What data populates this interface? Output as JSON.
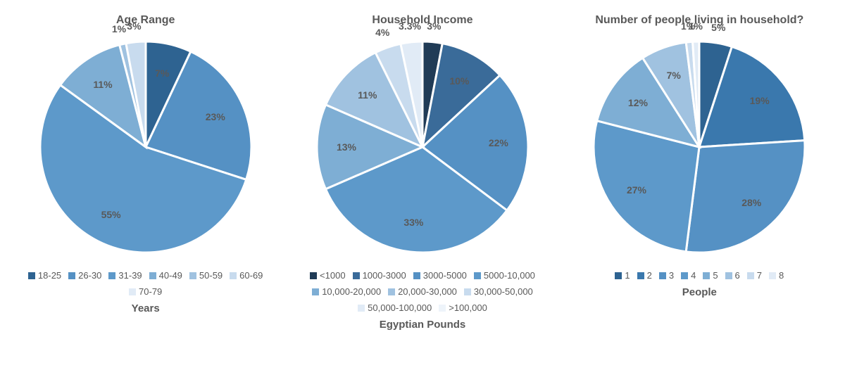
{
  "background_color": "#ffffff",
  "text_color": "#595959",
  "gap_color": "#ffffff",
  "gap_width": 3,
  "charts": [
    {
      "id": "age",
      "title": "Age Range",
      "axis_label": "Years",
      "type": "pie",
      "slices": [
        {
          "label": "18-25",
          "value": 7,
          "display": "7%",
          "color": "#2e6391"
        },
        {
          "label": "26-30",
          "value": 23,
          "display": "23%",
          "color": "#5591c4"
        },
        {
          "label": "31-39",
          "value": 55,
          "display": "55%",
          "color": "#5d99ca"
        },
        {
          "label": "40-49",
          "value": 11,
          "display": "11%",
          "color": "#7eaed4"
        },
        {
          "label": "50-59",
          "value": 1,
          "display": "1%",
          "color": "#a0c2e0"
        },
        {
          "label": "60-69",
          "value": 3,
          "display": "3%",
          "color": "#c8dbee"
        },
        {
          "label": "70-79",
          "value": 0,
          "display": "",
          "color": "#e1ebf6"
        }
      ],
      "label_radius": 0.72,
      "outside_threshold": 5,
      "start_angle": -90
    },
    {
      "id": "income",
      "title": "Household Income",
      "axis_label": "Egyptian Pounds",
      "type": "pie",
      "slices": [
        {
          "label": "<1000",
          "value": 3,
          "display": "3%",
          "color": "#203b56"
        },
        {
          "label": "1000-3000",
          "value": 10,
          "display": "10%",
          "color": "#3a6b99"
        },
        {
          "label": "3000-5000",
          "value": 22,
          "display": "22%",
          "color": "#5591c4"
        },
        {
          "label": "5000-10,000",
          "value": 33,
          "display": "33%",
          "color": "#5d99ca"
        },
        {
          "label": "10,000-20,000",
          "value": 13,
          "display": "13%",
          "color": "#7eaed4"
        },
        {
          "label": "20,000-30,000",
          "value": 11,
          "display": "11%",
          "color": "#a0c2e0"
        },
        {
          "label": "30,000-50,000",
          "value": 4,
          "display": "4%",
          "color": "#c8dbee"
        },
        {
          "label": "50,000-100,000",
          "value": 3.3,
          "display": "3.3%",
          "color": "#e1ebf6"
        },
        {
          "label": ">100,000",
          "value": 0,
          "display": "",
          "color": "#eef4fa"
        }
      ],
      "label_radius": 0.72,
      "outside_threshold": 6,
      "start_angle": -90
    },
    {
      "id": "household",
      "title": "Number of people living in household?",
      "axis_label": "People",
      "type": "pie",
      "slices": [
        {
          "label": "1",
          "value": 5,
          "display": "5%",
          "color": "#2e6391"
        },
        {
          "label": "2",
          "value": 19,
          "display": "19%",
          "color": "#3a78ad"
        },
        {
          "label": "3",
          "value": 28,
          "display": "28%",
          "color": "#5591c4"
        },
        {
          "label": "4",
          "value": 27,
          "display": "27%",
          "color": "#5d99ca"
        },
        {
          "label": "5",
          "value": 12,
          "display": "12%",
          "color": "#7eaed4"
        },
        {
          "label": "6",
          "value": 7,
          "display": "7%",
          "color": "#a0c2e0"
        },
        {
          "label": "7",
          "value": 1,
          "display": "1%",
          "color": "#c8dbee"
        },
        {
          "label": "8",
          "value": 1,
          "display": "1%",
          "color": "#e1ebf6"
        }
      ],
      "label_radius": 0.72,
      "outside_threshold": 6,
      "start_angle": -90
    }
  ]
}
